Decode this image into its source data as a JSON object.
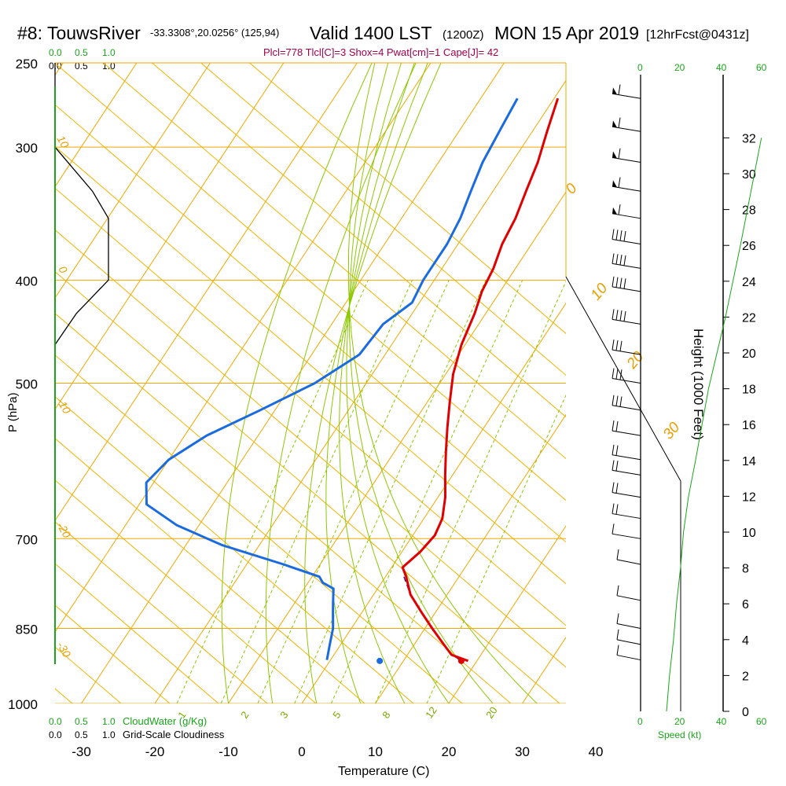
{
  "header": {
    "station": "#8: TouwsRiver",
    "coords": "-33.3308°,20.0256° (125,94)",
    "valid": "Valid 1400 LST",
    "zulu": "(1200Z)",
    "date": "MON 15 Apr 2019",
    "forecast": "[12hrFcst@0431z]"
  },
  "indices_line": "Plcl=778 Tlcl[C]=3 Shox=4 Pwat[cm]=1 Cape[J]= 42",
  "labels": {
    "pressure_axis": "P (hPa)",
    "temperature_axis": "Temperature (C)",
    "height_axis": "Height (1000 Feet)",
    "cloudwater": "CloudWater (g/Kg)",
    "cloudiness": "Grid-Scale Cloudiness",
    "speed": "Speed (kt)"
  },
  "cloud_scale": {
    "green": [
      "0.0",
      "0.5",
      "1.0"
    ],
    "black": [
      "0.0",
      "0.5",
      "1.0"
    ]
  },
  "speed_ticks": [
    "0",
    "20",
    "40",
    "60"
  ],
  "pressure_ticks": [
    "250",
    "300",
    "400",
    "500",
    "700",
    "850",
    "1000"
  ],
  "temperature_ticks": [
    "-30",
    "-20",
    "-10",
    "0",
    "10",
    "20",
    "30",
    "40"
  ],
  "height_ticks": [
    "0",
    "2",
    "4",
    "6",
    "8",
    "10",
    "12",
    "14",
    "16",
    "18",
    "20",
    "22",
    "24",
    "26",
    "28",
    "30",
    "32"
  ],
  "colors": {
    "temperature": "#e00000",
    "dewpoint": "#1a6be0",
    "isotherm": "#f0a800",
    "dry_adiabat": "#f0b400",
    "moist_adiabat": "#8cc800",
    "mixing_ratio": "#8cc800",
    "parcel": "#5a0a6a",
    "cloud_axis": "#1aa51a",
    "speed_curve": "#1aa51a"
  },
  "chart_data": {
    "type": "line",
    "x_axis": "temperature_C",
    "y_axis": "pressure_hPa",
    "ylim": [
      250,
      1000
    ],
    "xlim_bottom": [
      -33,
      35
    ],
    "series": [
      {
        "name": "temperature",
        "points": [
          [
            -19.5,
            270
          ],
          [
            -18,
            290
          ],
          [
            -16.5,
            310
          ],
          [
            -15.5,
            330
          ],
          [
            -14.5,
            350
          ],
          [
            -14,
            370
          ],
          [
            -13,
            390
          ],
          [
            -12.5,
            410
          ],
          [
            -11.5,
            430
          ],
          [
            -10.5,
            460
          ],
          [
            -9,
            490
          ],
          [
            -7,
            520
          ],
          [
            -5,
            550
          ],
          [
            -3,
            580
          ],
          [
            -1,
            610
          ],
          [
            1,
            640
          ],
          [
            2.5,
            670
          ],
          [
            3,
            695
          ],
          [
            2.5,
            720
          ],
          [
            1.5,
            745
          ],
          [
            2.8,
            760
          ],
          [
            5,
            790
          ],
          [
            8,
            820
          ],
          [
            11,
            850
          ],
          [
            14,
            880
          ],
          [
            16,
            900
          ],
          [
            18.8,
            912
          ]
        ]
      },
      {
        "name": "dewpoint",
        "points": [
          [
            -25,
            270
          ],
          [
            -24.5,
            290
          ],
          [
            -24,
            310
          ],
          [
            -23,
            330
          ],
          [
            -22,
            350
          ],
          [
            -21.5,
            370
          ],
          [
            -21.5,
            390
          ],
          [
            -21.5,
            400
          ],
          [
            -21,
            420
          ],
          [
            -23,
            440
          ],
          [
            -23.5,
            470
          ],
          [
            -27,
            500
          ],
          [
            -32,
            530
          ],
          [
            -37,
            560
          ],
          [
            -40,
            590
          ],
          [
            -41,
            620
          ],
          [
            -39,
            650
          ],
          [
            -33,
            680
          ],
          [
            -25,
            710
          ],
          [
            -15,
            740
          ],
          [
            -9,
            760
          ],
          [
            -8,
            770
          ],
          [
            -6,
            780
          ],
          [
            -5,
            800
          ],
          [
            -4,
            820
          ],
          [
            -2.5,
            850
          ],
          [
            -1.5,
            880
          ],
          [
            -0.5,
            910
          ]
        ]
      },
      {
        "name": "parcel",
        "points": [
          [
            2.5,
            760
          ],
          [
            5,
            790
          ],
          [
            8,
            820
          ],
          [
            11,
            850
          ],
          [
            14,
            880
          ],
          [
            16,
            900
          ],
          [
            18,
            912
          ]
        ]
      }
    ],
    "surface_points": {
      "temperature": 21.7,
      "dewpoint": 10.6,
      "pressure": 912
    },
    "height_profile_kft": [
      [
        0,
        2.6
      ],
      [
        2,
        2.9
      ],
      [
        4,
        3.3
      ],
      [
        6,
        3.6
      ],
      [
        8,
        4.0
      ],
      [
        10,
        4.3
      ],
      [
        12,
        4.8
      ],
      [
        14,
        5.5
      ],
      [
        18,
        6.8
      ],
      [
        22,
        8.5
      ],
      [
        26,
        10.0
      ],
      [
        30,
        11.4
      ],
      [
        32,
        12.1
      ]
    ],
    "wind_barbs": [
      {
        "pressure": 270,
        "speed_kt": 55
      },
      {
        "pressure": 290,
        "speed_kt": 55
      },
      {
        "pressure": 310,
        "speed_kt": 55
      },
      {
        "pressure": 330,
        "speed_kt": 55
      },
      {
        "pressure": 350,
        "speed_kt": 55
      },
      {
        "pressure": 370,
        "speed_kt": 35
      },
      {
        "pressure": 390,
        "speed_kt": 35
      },
      {
        "pressure": 410,
        "speed_kt": 35
      },
      {
        "pressure": 440,
        "speed_kt": 35
      },
      {
        "pressure": 470,
        "speed_kt": 30
      },
      {
        "pressure": 500,
        "speed_kt": 30
      },
      {
        "pressure": 530,
        "speed_kt": 25
      },
      {
        "pressure": 560,
        "speed_kt": 20
      },
      {
        "pressure": 590,
        "speed_kt": 20
      },
      {
        "pressure": 610,
        "speed_kt": 15
      },
      {
        "pressure": 640,
        "speed_kt": 15
      },
      {
        "pressure": 670,
        "speed_kt": 15
      },
      {
        "pressure": 700,
        "speed_kt": 10
      },
      {
        "pressure": 740,
        "speed_kt": 10
      },
      {
        "pressure": 800,
        "speed_kt": 10
      },
      {
        "pressure": 850,
        "speed_kt": 10
      },
      {
        "pressure": 880,
        "speed_kt": 5
      },
      {
        "pressure": 910,
        "speed_kt": 5
      }
    ],
    "cloudiness_profile": [
      [
        250,
        0.0
      ],
      [
        300,
        0.0
      ],
      [
        330,
        0.35
      ],
      [
        350,
        0.5
      ],
      [
        400,
        0.5
      ],
      [
        430,
        0.2
      ],
      [
        460,
        0.0
      ]
    ],
    "isotherm_labels": [
      "0",
      "10",
      "20",
      "30",
      "10",
      "0",
      "-10",
      "-20",
      "-30"
    ],
    "mixing_ratio_labels": [
      "1",
      "2",
      "3",
      "5",
      "8",
      "12",
      "20"
    ]
  }
}
